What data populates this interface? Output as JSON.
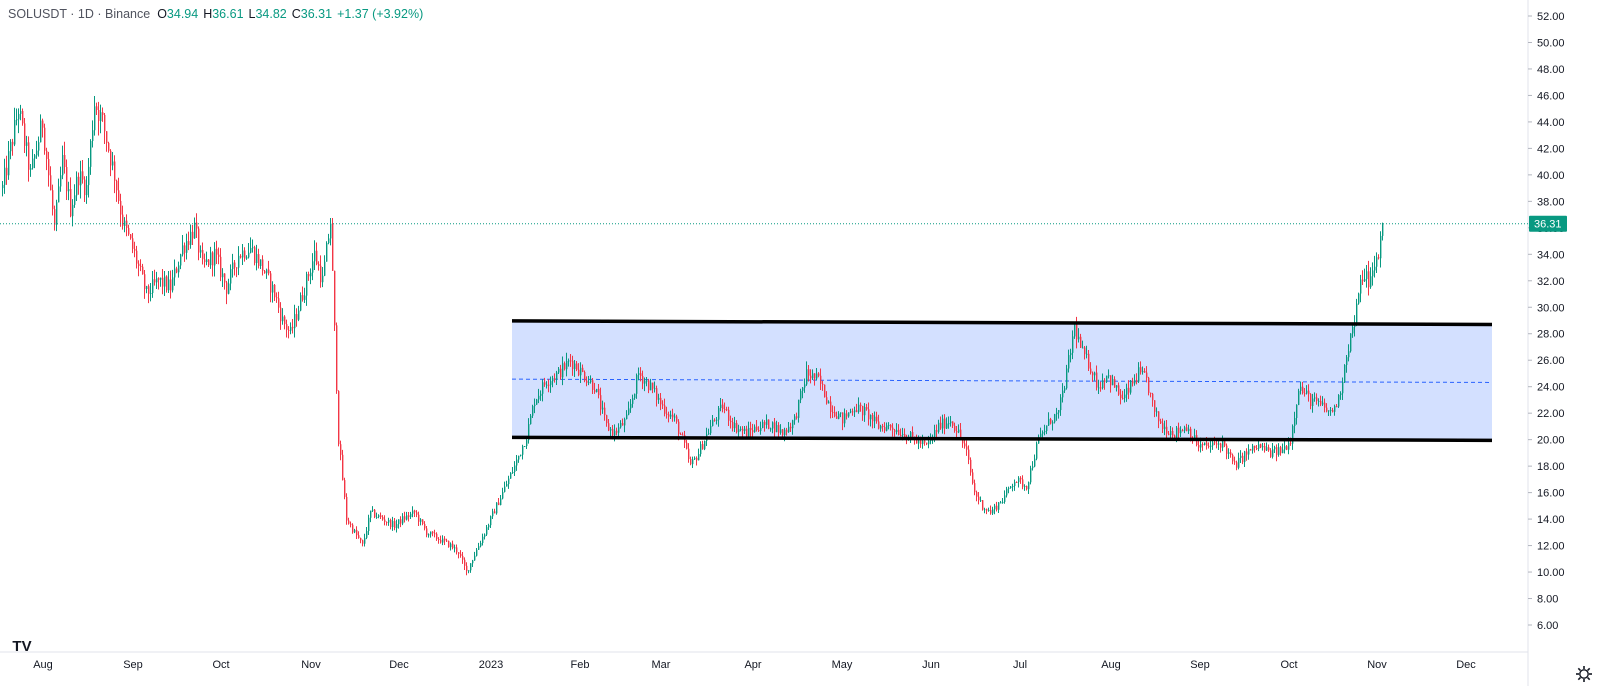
{
  "header": {
    "symbol_line": "SOLUSDT · 1D · Binance",
    "ohlc": [
      {
        "k": "O",
        "v": "34.94"
      },
      {
        "k": "H",
        "v": "36.61"
      },
      {
        "k": "L",
        "v": "34.82"
      },
      {
        "k": "C",
        "v": "36.31"
      }
    ],
    "change": "+1.37 (+3.92%)"
  },
  "price_tag": "36.31",
  "logo_text": "TV",
  "icons": {
    "logo": "tradingview-logo-icon",
    "settings": "gear-icon"
  },
  "colors": {
    "up": "#089981",
    "down": "#F23645",
    "channel_fill": "#d1deff",
    "channel_border": "#000000",
    "midline": "#2962ff",
    "price_line": "#089981"
  },
  "chart_data": {
    "type": "candlestick",
    "symbol": "SOLUSDT",
    "interval": "1D",
    "exchange": "Binance",
    "ylim": [
      4.5,
      53.5
    ],
    "y_ticks": [
      "6.00",
      "8.00",
      "10.00",
      "12.00",
      "14.00",
      "16.00",
      "18.00",
      "20.00",
      "22.00",
      "24.00",
      "26.00",
      "28.00",
      "30.00",
      "32.00",
      "34.00",
      "36.00",
      "38.00",
      "40.00",
      "42.00",
      "44.00",
      "46.00",
      "48.00",
      "50.00",
      "52.00"
    ],
    "x_labels": [
      "Aug",
      "Sep",
      "Oct",
      "Nov",
      "Dec",
      "2023",
      "Feb",
      "Mar",
      "Apr",
      "May",
      "Jun",
      "Jul",
      "Aug",
      "Sep",
      "Oct",
      "Nov",
      "Dec"
    ],
    "last_close": 36.31,
    "path_points": [
      [
        0,
        39
      ],
      [
        8,
        45
      ],
      [
        14,
        40
      ],
      [
        20,
        44
      ],
      [
        26,
        36
      ],
      [
        30,
        41
      ],
      [
        34,
        37.5
      ],
      [
        38,
        40
      ],
      [
        42,
        39
      ],
      [
        46,
        45.5
      ],
      [
        50,
        44
      ],
      [
        56,
        40
      ],
      [
        60,
        36.5
      ],
      [
        66,
        34
      ],
      [
        72,
        31
      ],
      [
        78,
        32
      ],
      [
        84,
        31.5
      ],
      [
        90,
        34.5
      ],
      [
        96,
        36
      ],
      [
        100,
        33
      ],
      [
        106,
        34
      ],
      [
        112,
        31.5
      ],
      [
        118,
        34
      ],
      [
        124,
        34.5
      ],
      [
        130,
        33
      ],
      [
        136,
        31
      ],
      [
        140,
        29
      ],
      [
        144,
        28
      ],
      [
        148,
        30
      ],
      [
        152,
        32
      ],
      [
        156,
        34
      ],
      [
        160,
        32
      ],
      [
        164,
        36.5
      ],
      [
        168,
        20
      ],
      [
        172,
        14
      ],
      [
        176,
        13
      ],
      [
        180,
        12
      ],
      [
        184,
        14.5
      ],
      [
        190,
        14
      ],
      [
        196,
        13.5
      ],
      [
        200,
        14
      ],
      [
        206,
        14.5
      ],
      [
        212,
        13
      ],
      [
        218,
        12.5
      ],
      [
        224,
        12
      ],
      [
        228,
        11.5
      ],
      [
        232,
        10
      ],
      [
        238,
        12
      ],
      [
        244,
        14
      ],
      [
        250,
        16
      ],
      [
        256,
        18
      ],
      [
        262,
        20.3
      ],
      [
        266,
        23
      ],
      [
        272,
        24.5
      ],
      [
        278,
        25
      ],
      [
        284,
        26
      ],
      [
        290,
        25
      ],
      [
        296,
        24
      ],
      [
        302,
        21
      ],
      [
        306,
        20.5
      ],
      [
        312,
        21.5
      ],
      [
        318,
        25
      ],
      [
        324,
        24
      ],
      [
        330,
        22.5
      ],
      [
        336,
        21.5
      ],
      [
        340,
        20
      ],
      [
        344,
        18
      ],
      [
        348,
        19
      ],
      [
        354,
        21
      ],
      [
        360,
        22.5
      ],
      [
        366,
        21
      ],
      [
        372,
        20.5
      ],
      [
        378,
        21
      ],
      [
        384,
        21.2
      ],
      [
        390,
        20.5
      ],
      [
        396,
        21.5
      ],
      [
        402,
        25
      ],
      [
        408,
        24.5
      ],
      [
        414,
        22.5
      ],
      [
        420,
        21.5
      ],
      [
        426,
        22.5
      ],
      [
        432,
        22
      ],
      [
        438,
        21
      ],
      [
        444,
        21
      ],
      [
        450,
        20.5
      ],
      [
        456,
        20
      ],
      [
        462,
        19.5
      ],
      [
        468,
        21
      ],
      [
        474,
        21.5
      ],
      [
        478,
        20.5
      ],
      [
        482,
        19
      ],
      [
        486,
        16
      ],
      [
        490,
        15
      ],
      [
        494,
        14.5
      ],
      [
        500,
        15.5
      ],
      [
        506,
        17
      ],
      [
        512,
        16.5
      ],
      [
        518,
        20
      ],
      [
        524,
        21.5
      ],
      [
        528,
        22
      ],
      [
        532,
        25
      ],
      [
        536,
        28.5
      ],
      [
        540,
        26.5
      ],
      [
        544,
        25.5
      ],
      [
        548,
        24
      ],
      [
        552,
        25
      ],
      [
        556,
        24
      ],
      [
        560,
        23
      ],
      [
        564,
        24
      ],
      [
        568,
        25
      ],
      [
        572,
        24.5
      ],
      [
        576,
        22
      ],
      [
        580,
        21
      ],
      [
        586,
        20.5
      ],
      [
        592,
        21
      ],
      [
        598,
        19.5
      ],
      [
        604,
        19.5
      ],
      [
        610,
        19.8
      ],
      [
        616,
        18
      ],
      [
        622,
        19
      ],
      [
        628,
        19.5
      ],
      [
        634,
        19
      ],
      [
        640,
        19.2
      ],
      [
        644,
        20
      ],
      [
        648,
        24
      ],
      [
        654,
        23
      ],
      [
        660,
        22.5
      ],
      [
        664,
        22
      ],
      [
        668,
        23
      ],
      [
        672,
        26.5
      ],
      [
        676,
        29
      ],
      [
        680,
        32.5
      ],
      [
        684,
        32
      ],
      [
        688,
        34
      ],
      [
        690,
        36.31
      ]
    ],
    "channel": {
      "upper": [
        [
          255,
          28.97
        ],
        [
          745,
          28.7
        ]
      ],
      "lower": [
        [
          255,
          20.17
        ],
        [
          745,
          19.95
        ]
      ],
      "mid": [
        [
          255,
          24.57
        ],
        [
          745,
          24.32
        ]
      ]
    },
    "notes": "path_points are [day index from first candle, approximate price]; candles are generated along this path"
  }
}
